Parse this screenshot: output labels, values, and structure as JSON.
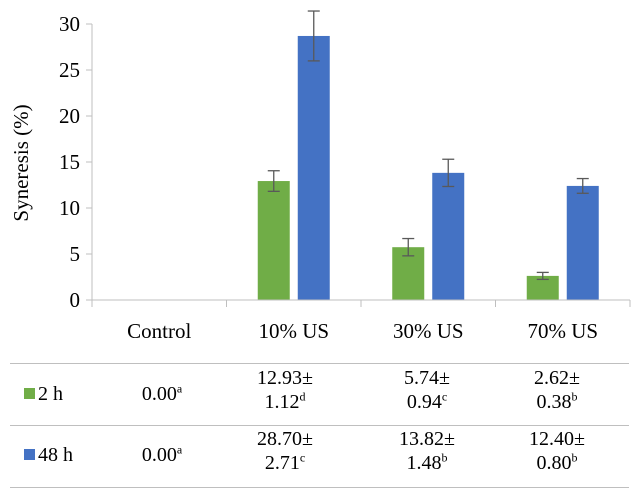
{
  "colors": {
    "series_2h": "#70ad47",
    "series_48h": "#4472c4",
    "axis": "#bfbfbf",
    "error_bar": "#595959"
  },
  "chart_data": {
    "type": "bar",
    "ylabel": "Syneresis (%)",
    "ylim": [
      0,
      30
    ],
    "yticks": [
      "0",
      "5",
      "10",
      "15",
      "20",
      "25",
      "30"
    ],
    "categories": [
      "Control",
      "10% US",
      "30% US",
      "70% US"
    ],
    "series": [
      {
        "name": "2 h",
        "values": [
          0.0,
          12.93,
          5.74,
          2.62
        ],
        "errors": [
          0.0,
          1.12,
          0.94,
          0.38
        ]
      },
      {
        "name": "48 h",
        "values": [
          0.0,
          28.7,
          13.82,
          12.4
        ],
        "errors": [
          0.0,
          2.71,
          1.48,
          0.8
        ]
      }
    ],
    "gridlines": false
  },
  "data_table": {
    "rows": [
      {
        "name": "2 h",
        "cells": [
          {
            "l1": "0.00",
            "sup": "a"
          },
          {
            "l1": "12.93±",
            "l2": "1.12",
            "sup": "d"
          },
          {
            "l1": "5.74±",
            "l2": "0.94",
            "sup": "c"
          },
          {
            "l1": "2.62±",
            "l2": "0.38",
            "sup": "b"
          }
        ]
      },
      {
        "name": "48 h",
        "cells": [
          {
            "l1": "0.00",
            "sup": "a"
          },
          {
            "l1": "28.70±",
            "l2": "2.71",
            "sup": "c"
          },
          {
            "l1": "13.82±",
            "l2": "1.48",
            "sup": "b"
          },
          {
            "l1": "12.40±",
            "l2": "0.80",
            "sup": "b"
          }
        ]
      }
    ]
  }
}
